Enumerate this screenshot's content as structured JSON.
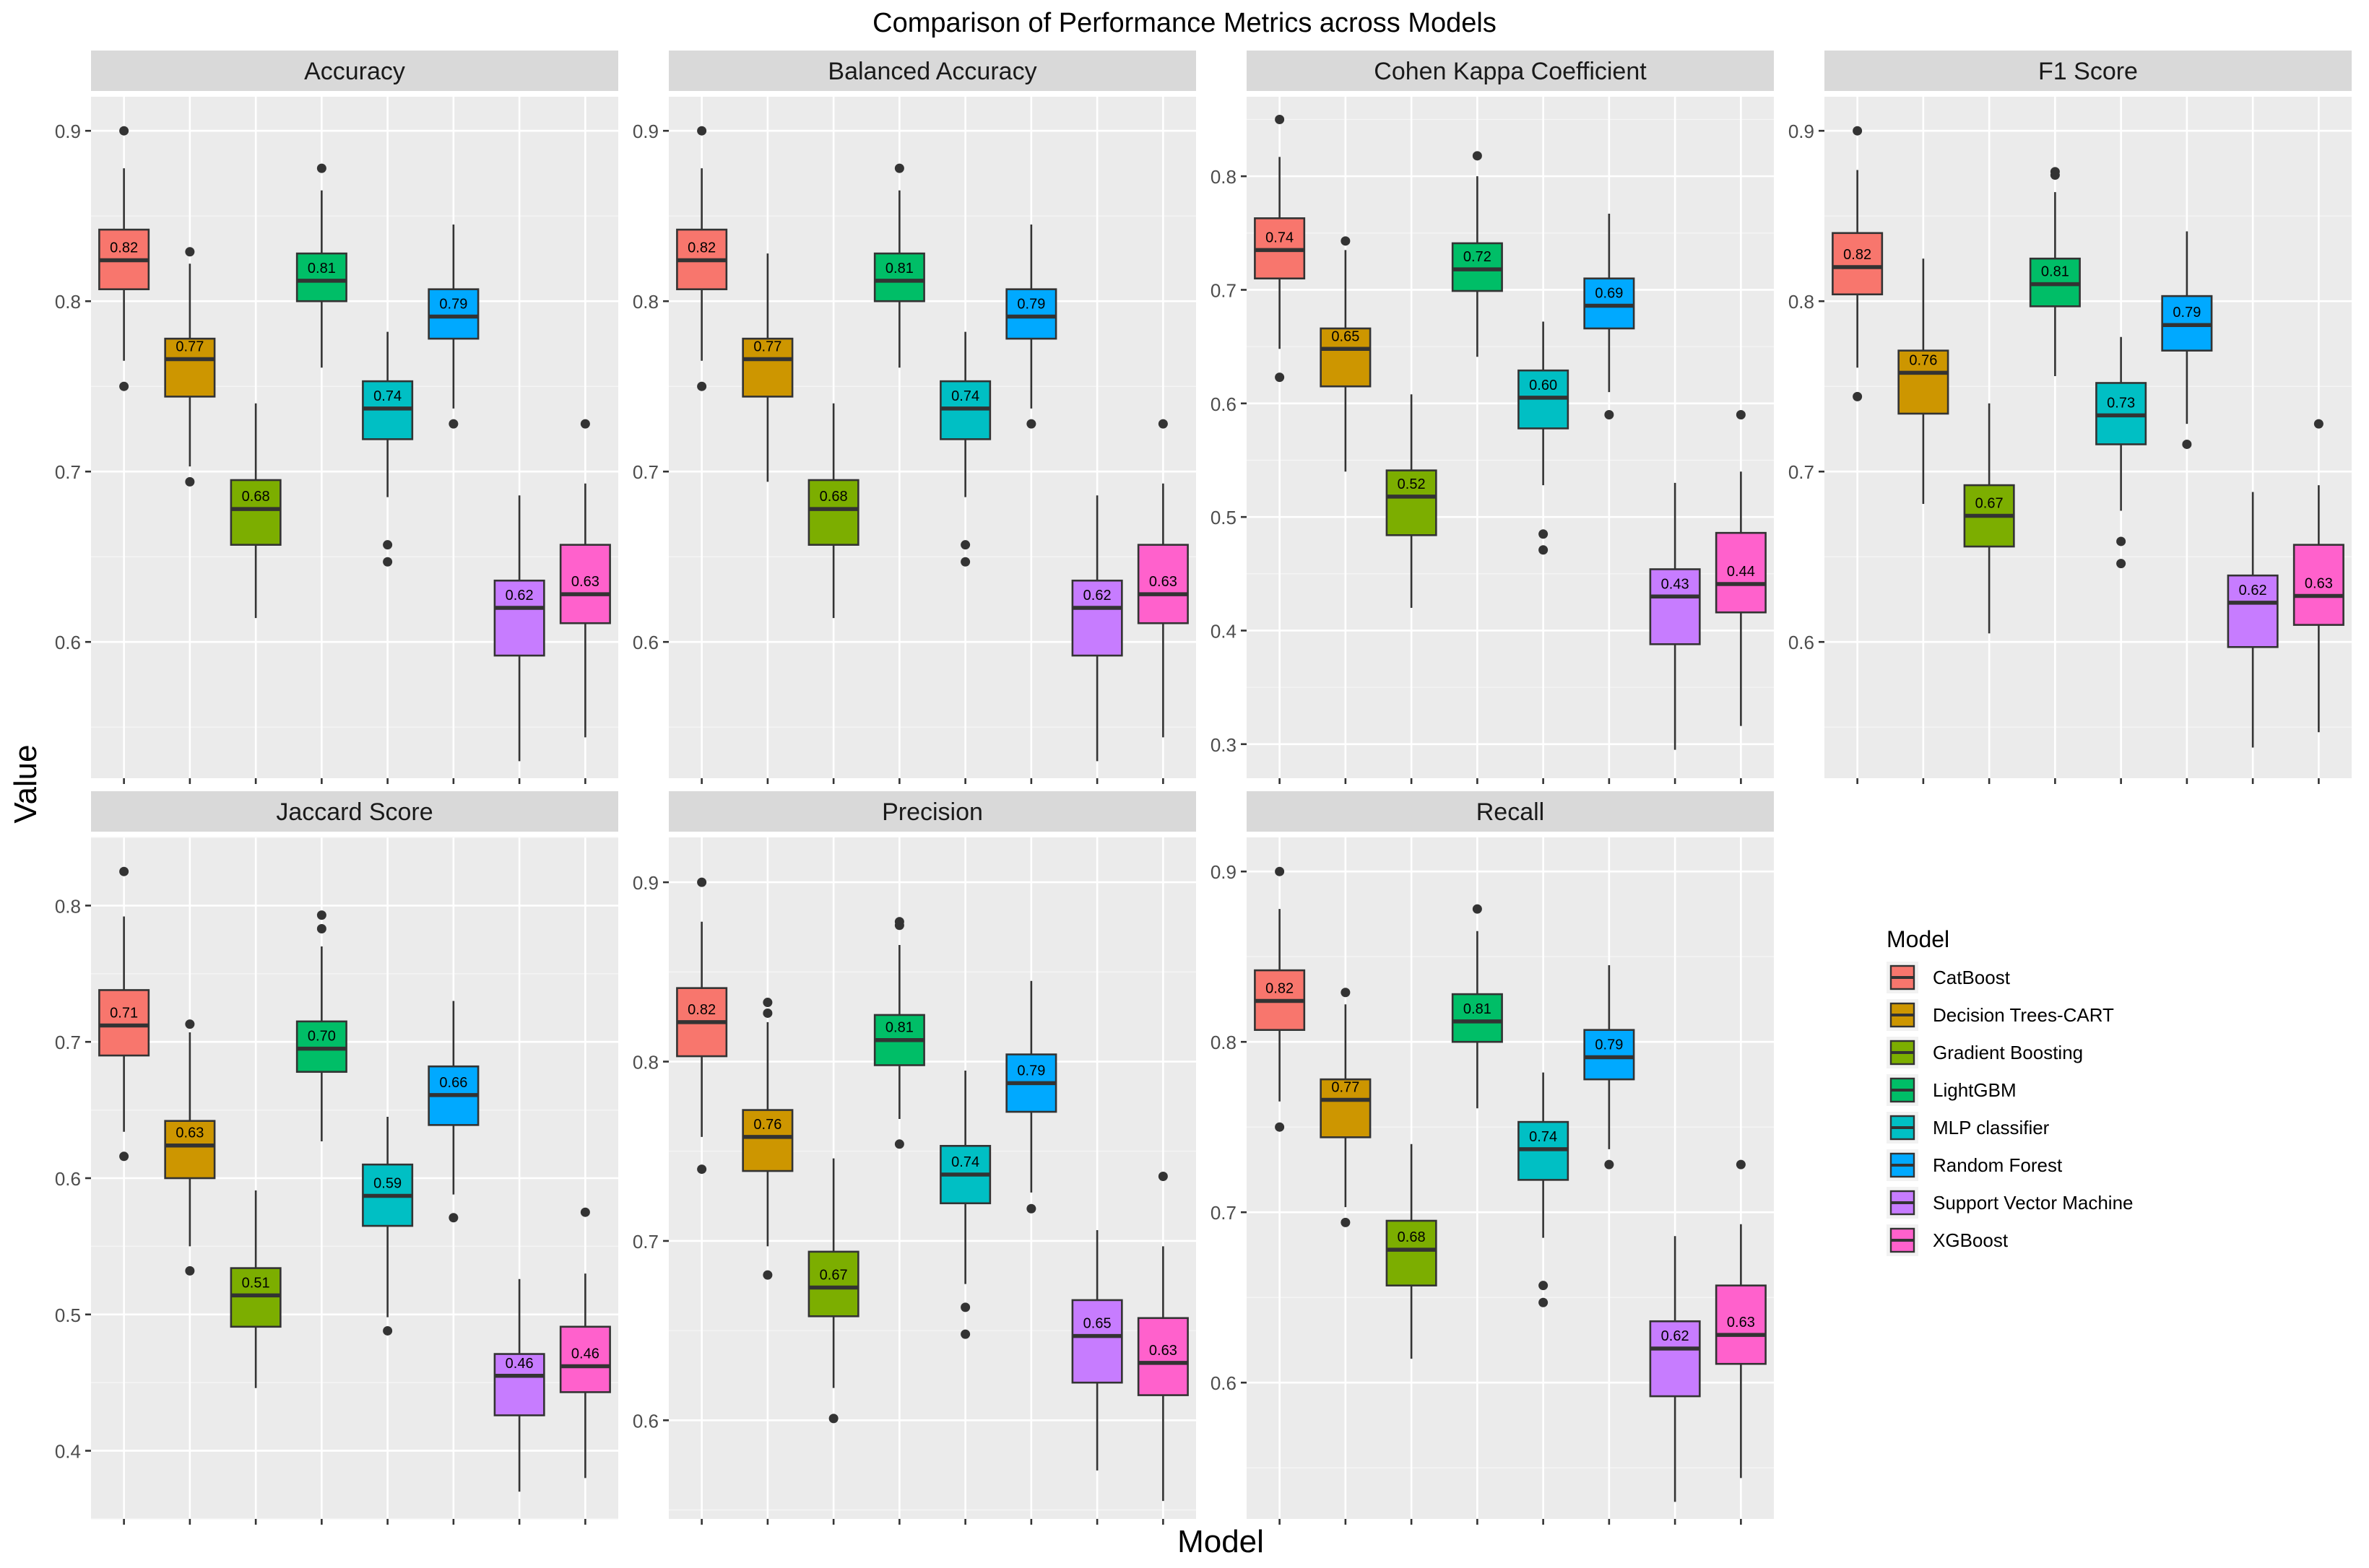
{
  "chart_data": {
    "type": "boxplot",
    "title": "Comparison of Performance Metrics across Models",
    "xlabel": "Model",
    "ylabel": "Value",
    "legend": {
      "title": "Model",
      "position": "right",
      "entries": [
        {
          "name": "CatBoost",
          "color": "#F8766D"
        },
        {
          "name": "Decision Trees-CART",
          "color": "#CD9600"
        },
        {
          "name": "Gradient Boosting",
          "color": "#7CAE00"
        },
        {
          "name": "LightGBM",
          "color": "#00BE67"
        },
        {
          "name": "MLP classifier",
          "color": "#00BFC4"
        },
        {
          "name": "Random Forest",
          "color": "#00A9FF"
        },
        {
          "name": "Support Vector Machine",
          "color": "#C77CFF"
        },
        {
          "name": "XGBoost",
          "color": "#FF61CC"
        }
      ]
    },
    "facets": [
      {
        "title": "Accuracy",
        "ylim": [
          0.52,
          0.92
        ],
        "yticks": [
          0.6,
          0.7,
          0.8,
          0.9
        ],
        "boxes": [
          {
            "model": "CatBoost",
            "label": "0.82",
            "min": 0.765,
            "q1": 0.807,
            "median": 0.824,
            "q3": 0.842,
            "max": 0.878,
            "outliers": [
              0.9,
              0.75
            ]
          },
          {
            "model": "Decision Trees-CART",
            "label": "0.77",
            "min": 0.703,
            "q1": 0.744,
            "median": 0.766,
            "q3": 0.778,
            "max": 0.822,
            "outliers": [
              0.829,
              0.694
            ]
          },
          {
            "model": "Gradient Boosting",
            "label": "0.68",
            "min": 0.614,
            "q1": 0.657,
            "median": 0.678,
            "q3": 0.695,
            "max": 0.74,
            "outliers": []
          },
          {
            "model": "LightGBM",
            "label": "0.81",
            "min": 0.761,
            "q1": 0.8,
            "median": 0.812,
            "q3": 0.828,
            "max": 0.865,
            "outliers": [
              0.878
            ]
          },
          {
            "model": "MLP classifier",
            "label": "0.74",
            "min": 0.685,
            "q1": 0.719,
            "median": 0.737,
            "q3": 0.753,
            "max": 0.782,
            "outliers": [
              0.657,
              0.647
            ]
          },
          {
            "model": "Random Forest",
            "label": "0.79",
            "min": 0.737,
            "q1": 0.778,
            "median": 0.791,
            "q3": 0.807,
            "max": 0.845,
            "outliers": [
              0.728
            ]
          },
          {
            "model": "Support Vector Machine",
            "label": "0.62",
            "min": 0.53,
            "q1": 0.592,
            "median": 0.62,
            "q3": 0.636,
            "max": 0.686,
            "outliers": []
          },
          {
            "model": "XGBoost",
            "label": "0.63",
            "min": 0.544,
            "q1": 0.611,
            "median": 0.628,
            "q3": 0.657,
            "max": 0.693,
            "outliers": [
              0.728
            ]
          }
        ]
      },
      {
        "title": "Balanced Accuracy",
        "ylim": [
          0.52,
          0.92
        ],
        "yticks": [
          0.6,
          0.7,
          0.8,
          0.9
        ],
        "boxes": [
          {
            "model": "CatBoost",
            "label": "0.82",
            "min": 0.765,
            "q1": 0.807,
            "median": 0.824,
            "q3": 0.842,
            "max": 0.878,
            "outliers": [
              0.9,
              0.75
            ]
          },
          {
            "model": "Decision Trees-CART",
            "label": "0.77",
            "min": 0.694,
            "q1": 0.744,
            "median": 0.766,
            "q3": 0.778,
            "max": 0.828,
            "outliers": []
          },
          {
            "model": "Gradient Boosting",
            "label": "0.68",
            "min": 0.614,
            "q1": 0.657,
            "median": 0.678,
            "q3": 0.695,
            "max": 0.74,
            "outliers": []
          },
          {
            "model": "LightGBM",
            "label": "0.81",
            "min": 0.761,
            "q1": 0.8,
            "median": 0.812,
            "q3": 0.828,
            "max": 0.865,
            "outliers": [
              0.878
            ]
          },
          {
            "model": "MLP classifier",
            "label": "0.74",
            "min": 0.685,
            "q1": 0.719,
            "median": 0.737,
            "q3": 0.753,
            "max": 0.782,
            "outliers": [
              0.657,
              0.647
            ]
          },
          {
            "model": "Random Forest",
            "label": "0.79",
            "min": 0.737,
            "q1": 0.778,
            "median": 0.791,
            "q3": 0.807,
            "max": 0.845,
            "outliers": [
              0.728
            ]
          },
          {
            "model": "Support Vector Machine",
            "label": "0.62",
            "min": 0.53,
            "q1": 0.592,
            "median": 0.62,
            "q3": 0.636,
            "max": 0.686,
            "outliers": []
          },
          {
            "model": "XGBoost",
            "label": "0.63",
            "min": 0.544,
            "q1": 0.611,
            "median": 0.628,
            "q3": 0.657,
            "max": 0.693,
            "outliers": [
              0.728
            ]
          }
        ]
      },
      {
        "title": "Cohen Kappa Coefficient",
        "ylim": [
          0.27,
          0.87
        ],
        "yticks": [
          0.3,
          0.4,
          0.5,
          0.6,
          0.7,
          0.8
        ],
        "boxes": [
          {
            "model": "CatBoost",
            "label": "0.74",
            "min": 0.648,
            "q1": 0.71,
            "median": 0.735,
            "q3": 0.763,
            "max": 0.817,
            "outliers": [
              0.85,
              0.623
            ]
          },
          {
            "model": "Decision Trees-CART",
            "label": "0.65",
            "min": 0.54,
            "q1": 0.615,
            "median": 0.648,
            "q3": 0.666,
            "max": 0.735,
            "outliers": [
              0.743
            ]
          },
          {
            "model": "Gradient Boosting",
            "label": "0.52",
            "min": 0.42,
            "q1": 0.484,
            "median": 0.518,
            "q3": 0.541,
            "max": 0.608,
            "outliers": []
          },
          {
            "model": "LightGBM",
            "label": "0.72",
            "min": 0.641,
            "q1": 0.699,
            "median": 0.718,
            "q3": 0.741,
            "max": 0.8,
            "outliers": [
              0.818
            ]
          },
          {
            "model": "MLP classifier",
            "label": "0.60",
            "min": 0.528,
            "q1": 0.578,
            "median": 0.605,
            "q3": 0.629,
            "max": 0.672,
            "outliers": [
              0.485,
              0.471
            ]
          },
          {
            "model": "Random Forest",
            "label": "0.69",
            "min": 0.61,
            "q1": 0.666,
            "median": 0.686,
            "q3": 0.71,
            "max": 0.767,
            "outliers": [
              0.59
            ]
          },
          {
            "model": "Support Vector Machine",
            "label": "0.43",
            "min": 0.295,
            "q1": 0.388,
            "median": 0.43,
            "q3": 0.454,
            "max": 0.53,
            "outliers": []
          },
          {
            "model": "XGBoost",
            "label": "0.44",
            "min": 0.316,
            "q1": 0.416,
            "median": 0.441,
            "q3": 0.486,
            "max": 0.54,
            "outliers": [
              0.59
            ]
          }
        ]
      },
      {
        "title": "F1 Score",
        "ylim": [
          0.52,
          0.92
        ],
        "yticks": [
          0.6,
          0.7,
          0.8,
          0.9
        ],
        "boxes": [
          {
            "model": "CatBoost",
            "label": "0.82",
            "min": 0.761,
            "q1": 0.804,
            "median": 0.82,
            "q3": 0.84,
            "max": 0.877,
            "outliers": [
              0.9,
              0.744
            ]
          },
          {
            "model": "Decision Trees-CART",
            "label": "0.76",
            "min": 0.681,
            "q1": 0.734,
            "median": 0.758,
            "q3": 0.771,
            "max": 0.825,
            "outliers": []
          },
          {
            "model": "Gradient Boosting",
            "label": "0.67",
            "min": 0.605,
            "q1": 0.656,
            "median": 0.674,
            "q3": 0.692,
            "max": 0.74,
            "outliers": []
          },
          {
            "model": "LightGBM",
            "label": "0.81",
            "min": 0.756,
            "q1": 0.797,
            "median": 0.81,
            "q3": 0.825,
            "max": 0.864,
            "outliers": [
              0.876,
              0.874
            ]
          },
          {
            "model": "MLP classifier",
            "label": "0.73",
            "min": 0.677,
            "q1": 0.716,
            "median": 0.733,
            "q3": 0.752,
            "max": 0.779,
            "outliers": [
              0.659,
              0.646
            ]
          },
          {
            "model": "Random Forest",
            "label": "0.79",
            "min": 0.728,
            "q1": 0.771,
            "median": 0.786,
            "q3": 0.803,
            "max": 0.841,
            "outliers": [
              0.716
            ]
          },
          {
            "model": "Support Vector Machine",
            "label": "0.62",
            "min": 0.538,
            "q1": 0.597,
            "median": 0.623,
            "q3": 0.639,
            "max": 0.688,
            "outliers": []
          },
          {
            "model": "XGBoost",
            "label": "0.63",
            "min": 0.547,
            "q1": 0.61,
            "median": 0.627,
            "q3": 0.657,
            "max": 0.692,
            "outliers": [
              0.728
            ]
          }
        ]
      },
      {
        "title": "Jaccard Score",
        "ylim": [
          0.35,
          0.85
        ],
        "yticks": [
          0.4,
          0.5,
          0.6,
          0.7,
          0.8
        ],
        "boxes": [
          {
            "model": "CatBoost",
            "label": "0.71",
            "min": 0.634,
            "q1": 0.69,
            "median": 0.712,
            "q3": 0.738,
            "max": 0.792,
            "outliers": [
              0.825,
              0.616
            ]
          },
          {
            "model": "Decision Trees-CART",
            "label": "0.63",
            "min": 0.55,
            "q1": 0.6,
            "median": 0.624,
            "q3": 0.642,
            "max": 0.707,
            "outliers": [
              0.713,
              0.532
            ]
          },
          {
            "model": "Gradient Boosting",
            "label": "0.51",
            "min": 0.446,
            "q1": 0.491,
            "median": 0.514,
            "q3": 0.534,
            "max": 0.591,
            "outliers": []
          },
          {
            "model": "LightGBM",
            "label": "0.70",
            "min": 0.627,
            "q1": 0.678,
            "median": 0.695,
            "q3": 0.715,
            "max": 0.77,
            "outliers": [
              0.793,
              0.783
            ]
          },
          {
            "model": "MLP classifier",
            "label": "0.59",
            "min": 0.498,
            "q1": 0.565,
            "median": 0.587,
            "q3": 0.61,
            "max": 0.645,
            "outliers": [
              0.488
            ]
          },
          {
            "model": "Random Forest",
            "label": "0.66",
            "min": 0.588,
            "q1": 0.639,
            "median": 0.661,
            "q3": 0.682,
            "max": 0.73,
            "outliers": [
              0.571
            ]
          },
          {
            "model": "Support Vector Machine",
            "label": "0.46",
            "min": 0.37,
            "q1": 0.426,
            "median": 0.455,
            "q3": 0.471,
            "max": 0.526,
            "outliers": []
          },
          {
            "model": "XGBoost",
            "label": "0.46",
            "min": 0.38,
            "q1": 0.443,
            "median": 0.462,
            "q3": 0.491,
            "max": 0.53,
            "outliers": [
              0.575
            ]
          }
        ]
      },
      {
        "title": "Precision",
        "ylim": [
          0.545,
          0.925
        ],
        "yticks": [
          0.6,
          0.7,
          0.8,
          0.9
        ],
        "boxes": [
          {
            "model": "CatBoost",
            "label": "0.82",
            "min": 0.758,
            "q1": 0.803,
            "median": 0.822,
            "q3": 0.841,
            "max": 0.878,
            "outliers": [
              0.9,
              0.74
            ]
          },
          {
            "model": "Decision Trees-CART",
            "label": "0.76",
            "min": 0.697,
            "q1": 0.739,
            "median": 0.758,
            "q3": 0.773,
            "max": 0.822,
            "outliers": [
              0.833,
              0.827,
              0.681
            ]
          },
          {
            "model": "Gradient Boosting",
            "label": "0.67",
            "min": 0.618,
            "q1": 0.658,
            "median": 0.674,
            "q3": 0.694,
            "max": 0.746,
            "outliers": [
              0.601
            ]
          },
          {
            "model": "LightGBM",
            "label": "0.81",
            "min": 0.768,
            "q1": 0.798,
            "median": 0.812,
            "q3": 0.826,
            "max": 0.865,
            "outliers": [
              0.878,
              0.876,
              0.754
            ]
          },
          {
            "model": "MLP classifier",
            "label": "0.74",
            "min": 0.676,
            "q1": 0.721,
            "median": 0.737,
            "q3": 0.753,
            "max": 0.795,
            "outliers": [
              0.663,
              0.648
            ]
          },
          {
            "model": "Random Forest",
            "label": "0.79",
            "min": 0.727,
            "q1": 0.772,
            "median": 0.788,
            "q3": 0.804,
            "max": 0.845,
            "outliers": [
              0.718
            ]
          },
          {
            "model": "Support Vector Machine",
            "label": "0.65",
            "min": 0.572,
            "q1": 0.621,
            "median": 0.647,
            "q3": 0.667,
            "max": 0.706,
            "outliers": []
          },
          {
            "model": "XGBoost",
            "label": "0.63",
            "min": 0.555,
            "q1": 0.614,
            "median": 0.632,
            "q3": 0.657,
            "max": 0.697,
            "outliers": [
              0.736
            ]
          }
        ]
      },
      {
        "title": "Recall",
        "ylim": [
          0.52,
          0.92
        ],
        "yticks": [
          0.6,
          0.7,
          0.8,
          0.9
        ],
        "boxes": [
          {
            "model": "CatBoost",
            "label": "0.82",
            "min": 0.765,
            "q1": 0.807,
            "median": 0.824,
            "q3": 0.842,
            "max": 0.878,
            "outliers": [
              0.9,
              0.75
            ]
          },
          {
            "model": "Decision Trees-CART",
            "label": "0.77",
            "min": 0.703,
            "q1": 0.744,
            "median": 0.766,
            "q3": 0.778,
            "max": 0.822,
            "outliers": [
              0.829,
              0.694
            ]
          },
          {
            "model": "Gradient Boosting",
            "label": "0.68",
            "min": 0.614,
            "q1": 0.657,
            "median": 0.678,
            "q3": 0.695,
            "max": 0.74,
            "outliers": []
          },
          {
            "model": "LightGBM",
            "label": "0.81",
            "min": 0.761,
            "q1": 0.8,
            "median": 0.812,
            "q3": 0.828,
            "max": 0.865,
            "outliers": [
              0.878
            ]
          },
          {
            "model": "MLP classifier",
            "label": "0.74",
            "min": 0.685,
            "q1": 0.719,
            "median": 0.737,
            "q3": 0.753,
            "max": 0.782,
            "outliers": [
              0.657,
              0.647
            ]
          },
          {
            "model": "Random Forest",
            "label": "0.79",
            "min": 0.737,
            "q1": 0.778,
            "median": 0.791,
            "q3": 0.807,
            "max": 0.845,
            "outliers": [
              0.728
            ]
          },
          {
            "model": "Support Vector Machine",
            "label": "0.62",
            "min": 0.53,
            "q1": 0.592,
            "median": 0.62,
            "q3": 0.636,
            "max": 0.686,
            "outliers": []
          },
          {
            "model": "XGBoost",
            "label": "0.63",
            "min": 0.544,
            "q1": 0.611,
            "median": 0.628,
            "q3": 0.657,
            "max": 0.693,
            "outliers": [
              0.728
            ]
          }
        ]
      }
    ]
  }
}
